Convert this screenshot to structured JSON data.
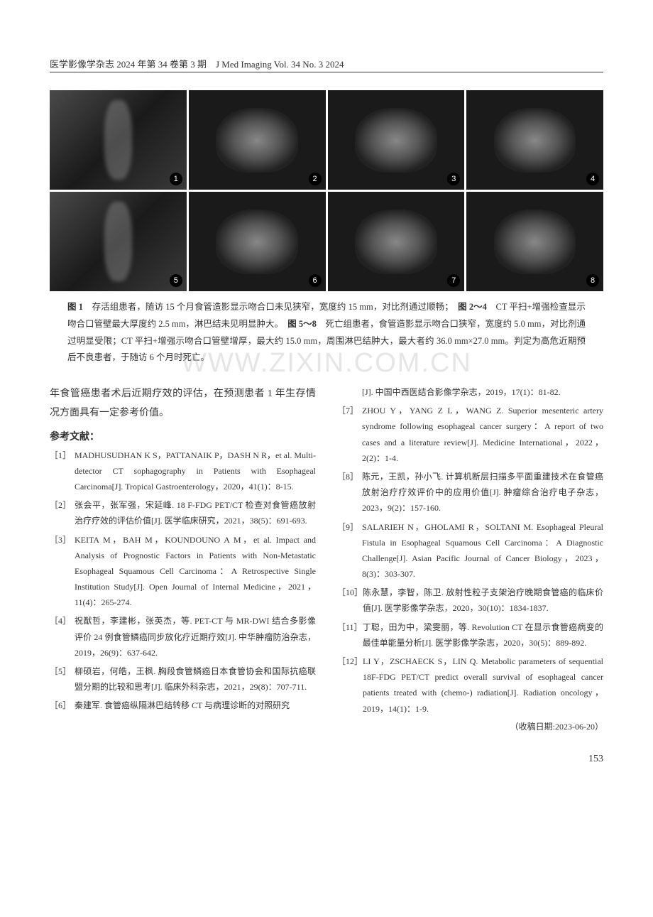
{
  "header": {
    "text": "医学影像学杂志 2024 年第 34 卷第 3 期　J Med Imaging Vol. 34 No. 3 2024"
  },
  "watermark": "WWW.ZIXIN.COM.CN",
  "figures": {
    "row1": [
      {
        "num": "1",
        "type": "xray"
      },
      {
        "num": "2",
        "type": "ct"
      },
      {
        "num": "3",
        "type": "ct"
      },
      {
        "num": "4",
        "type": "ct"
      }
    ],
    "row2": [
      {
        "num": "5",
        "type": "xray"
      },
      {
        "num": "6",
        "type": "ct"
      },
      {
        "num": "7",
        "type": "ct"
      },
      {
        "num": "8",
        "type": "ct"
      }
    ],
    "caption_parts": {
      "fig1_label": "图 1",
      "fig1_text": "　存活组患者，随访 15 个月食管造影显示吻合口未见狭窄，宽度约 15 mm，对比剂通过顺畅；　",
      "fig24_label": "图 2～4",
      "fig24_text": "　CT 平扫+增强检查显示吻合口管壁最大厚度约 2.5 mm，淋巴结未见明显肿大。　",
      "fig58_label": "图 5～8",
      "fig58_text": "　死亡组患者，食管造影显示吻合口狭窄，宽度约 5.0 mm，对比剂通过明显受限；CT 平扫+增强示吻合口管壁增厚，最大约 15.0 mm，周围淋巴结肿大，最大者约 36.0 mm×27.0 mm。判定为高危近期预后不良患者，于随访 6 个月时死亡。"
    }
  },
  "intro": "年食管癌患者术后近期疗效的评估，在预测患者 1 年生存情况方面具有一定参考价值。",
  "ref_heading": "参考文献：",
  "references_left": [
    {
      "num": "［1］",
      "text": "MADHUSUDHAN K S，PATTANAIK P，DASH N R，et al. Multi-detector CT sophagography in Patients with Esophageal Carcinoma[J]. Tropical Gastroenterology，2020，41(1)：8-15."
    },
    {
      "num": "［2］",
      "text": "张会平，张军强，宋延峰. 18 F-FDG PET/CT 检查对食管癌放射治疗疗效的评估价值[J]. 医学临床研究，2021，38(5)：691-693."
    },
    {
      "num": "［3］",
      "text": "KEITA M，BAH M，KOUNDOUNO A M，et al. Impact and Analysis of Prognostic Factors in Patients with Non-Metastatic Esophageal Squamous Cell Carcinoma：A Retrospective Single Institution Study[J]. Open Journal of Internal Medicine，2021，11(4)：265-274."
    },
    {
      "num": "［4］",
      "text": "祝猷哲，李建彬，张英杰，等. PET-CT 与 MR-DWI 结合多影像评价 24 例食管鳞癌同步放化疗近期疗效[J]. 中华肿瘤防治杂志，2019，26(9)：637-642."
    },
    {
      "num": "［5］",
      "text": "柳硕岩，何皓，王枫. 胸段食管鳞癌日本食管协会和国际抗癌联盟分期的比较和思考[J]. 临床外科杂志，2021，29(8)：707-711."
    },
    {
      "num": "［6］",
      "text": "秦建军. 食管癌纵隔淋巴结转移 CT 与病理诊断的对照研究"
    }
  ],
  "references_right": [
    {
      "num": "",
      "text": "[J]. 中国中西医结合影像学杂志，2019，17(1)：81-82."
    },
    {
      "num": "［7］",
      "text": "ZHOU Y，YANG Z L，WANG Z. Superior mesenteric artery syndrome following esophageal cancer surgery：A report of two cases and a literature review[J]. Medicine International，2022，2(2)：1-4."
    },
    {
      "num": "［8］",
      "text": "陈元，王凯，孙小飞. 计算机断层扫描多平面重建技术在食管癌放射治疗疗效评价中的应用价值[J]. 肿瘤综合治疗电子杂志，2023，9(2)：157-160."
    },
    {
      "num": "［9］",
      "text": "SALARIEH N，GHOLAMI R，SOLTANI M. Esophageal Pleural Fistula in Esophageal Squamous Cell Carcinoma：A Diagnostic Challenge[J]. Asian Pacific Journal of Cancer Biology，2023，8(3)：303-307."
    },
    {
      "num": "［10］",
      "text": "陈永慧，李智，陈卫. 放射性粒子支架治疗晚期食管癌的临床价值[J]. 医学影像学杂志，2020，30(10)：1834-1837."
    },
    {
      "num": "［11］",
      "text": "丁聪，田为中，梁雯丽，等. Revolution CT 在显示食管癌病变的最佳单能量分析[J]. 医学影像学杂志，2020，30(5)：889-892."
    },
    {
      "num": "［12］",
      "text": "LI Y，ZSCHAECK S，LIN Q. Metabolic parameters of sequential 18F-FDG PET/CT predict overall survival of esophageal cancer patients treated with (chemo-) radiation[J]. Radiation oncology，2019，14(1)：1-9."
    }
  ],
  "received_date": "（收稿日期:2023-06-20）",
  "page_number": "153"
}
